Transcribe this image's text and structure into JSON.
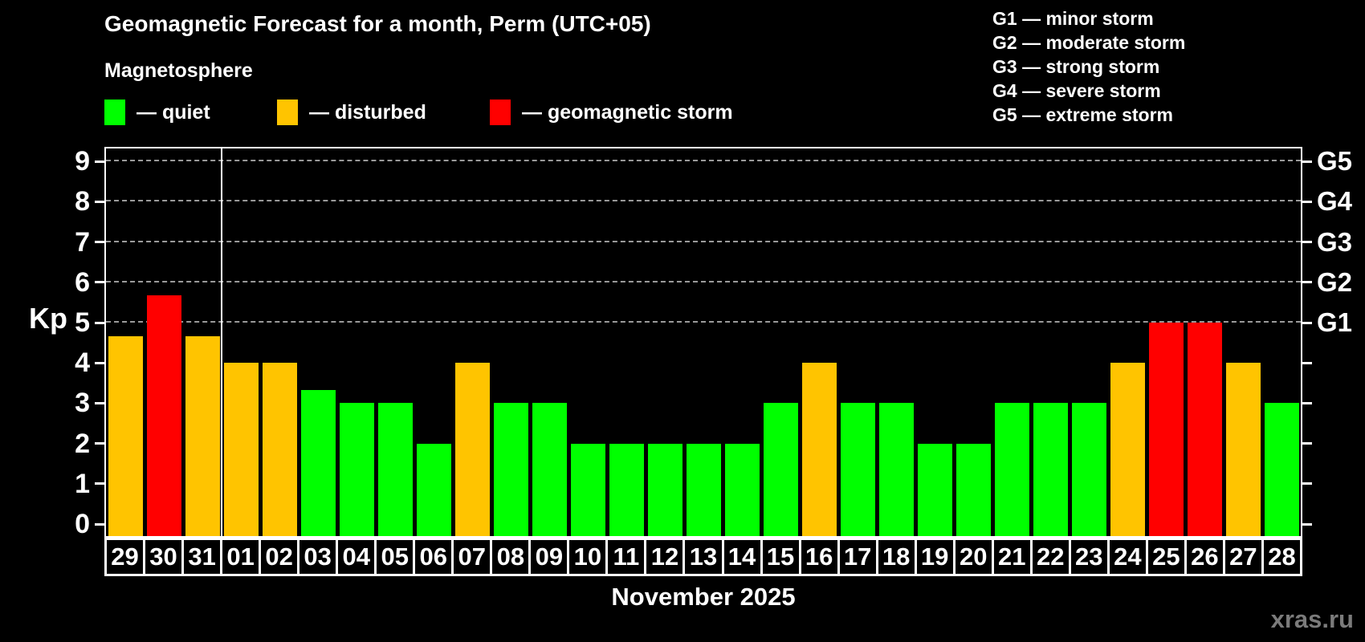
{
  "title": "Geomagnetic Forecast for a month, Perm (UTC+05)",
  "subtitle": "Magnetosphere",
  "legend": {
    "items": [
      {
        "key": "quiet",
        "label": "— quiet",
        "color": "#00ff00"
      },
      {
        "key": "disturbed",
        "label": "— disturbed",
        "color": "#ffc400"
      },
      {
        "key": "storm",
        "label": "— geomagnetic storm",
        "color": "#ff0000"
      }
    ]
  },
  "storm_scale": {
    "items": [
      "G1 — minor storm",
      "G2 — moderate storm",
      "G3 — strong storm",
      "G4 — severe storm",
      "G5 — extreme storm"
    ]
  },
  "watermark": "xras.ru",
  "chart_data": {
    "type": "bar",
    "title": "Geomagnetic Forecast for a month, Perm (UTC+05)",
    "ylabel": "Kp",
    "xlabel": "November 2025",
    "ylim": [
      0,
      9
    ],
    "yticks": [
      0,
      1,
      2,
      3,
      4,
      5,
      6,
      7,
      8,
      9
    ],
    "gridlines": [
      5,
      6,
      7,
      8,
      9
    ],
    "right_axis_labels": [
      {
        "kp": 5,
        "label": "G1"
      },
      {
        "kp": 6,
        "label": "G2"
      },
      {
        "kp": 7,
        "label": "G3"
      },
      {
        "kp": 8,
        "label": "G4"
      },
      {
        "kp": 9,
        "label": "G5"
      }
    ],
    "month_separator_after_index": 2,
    "categories": [
      "29",
      "30",
      "31",
      "01",
      "02",
      "03",
      "04",
      "05",
      "06",
      "07",
      "08",
      "09",
      "10",
      "11",
      "12",
      "13",
      "14",
      "15",
      "16",
      "17",
      "18",
      "19",
      "20",
      "21",
      "22",
      "23",
      "24",
      "25",
      "26",
      "27",
      "28"
    ],
    "series": [
      {
        "name": "Kp forecast",
        "values": [
          4.67,
          5.67,
          4.67,
          4,
          4,
          3.33,
          3,
          3,
          2,
          4,
          3,
          3,
          2,
          2,
          2,
          2,
          2,
          3,
          4,
          3,
          3,
          2,
          2,
          3,
          3,
          3,
          4,
          5,
          5,
          4,
          3
        ],
        "statuses": [
          "disturbed",
          "storm",
          "disturbed",
          "disturbed",
          "disturbed",
          "quiet",
          "quiet",
          "quiet",
          "quiet",
          "disturbed",
          "quiet",
          "quiet",
          "quiet",
          "quiet",
          "quiet",
          "quiet",
          "quiet",
          "quiet",
          "disturbed",
          "quiet",
          "quiet",
          "quiet",
          "quiet",
          "quiet",
          "quiet",
          "quiet",
          "disturbed",
          "storm",
          "storm",
          "disturbed",
          "quiet"
        ]
      }
    ],
    "status_colors": {
      "quiet": "#00ff00",
      "disturbed": "#ffc400",
      "storm": "#ff0000"
    }
  }
}
